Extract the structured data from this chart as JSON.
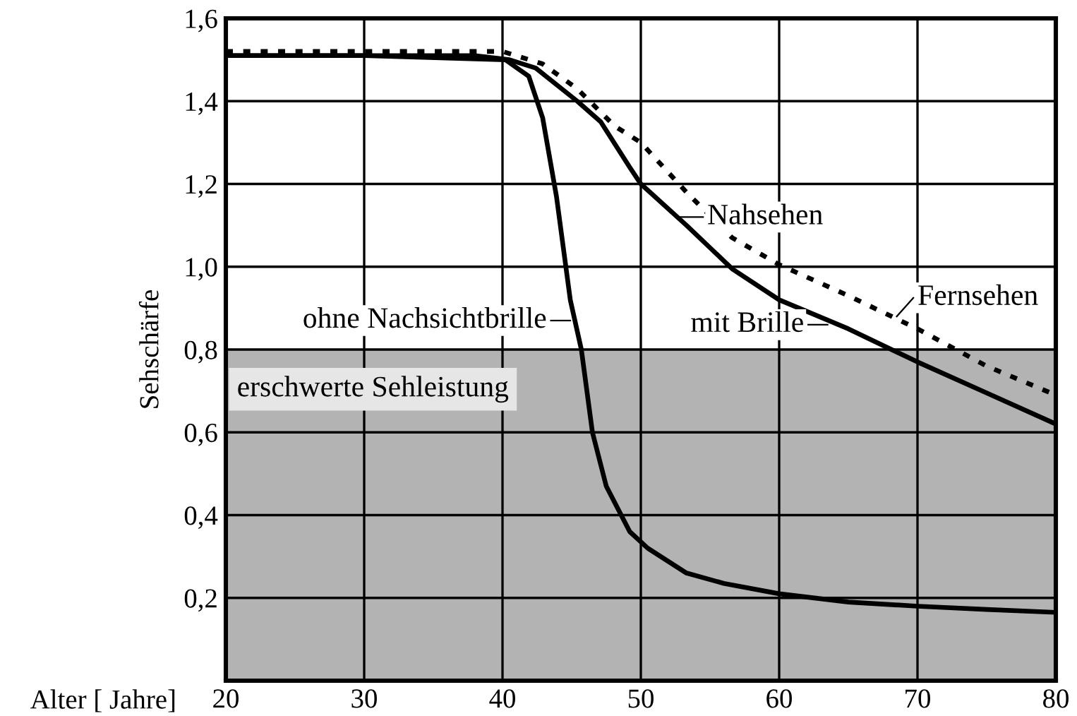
{
  "chart_data": {
    "type": "line",
    "xlabel": "Alter [ Jahre]",
    "ylabel": "Sehschärfe",
    "xlim": [
      20,
      80
    ],
    "ylim": [
      0,
      1.6
    ],
    "xticks": [
      20,
      30,
      40,
      50,
      60,
      70,
      80
    ],
    "yticks": [
      {
        "value": 0.2,
        "label": "0,2"
      },
      {
        "value": 0.4,
        "label": "0,4"
      },
      {
        "value": 0.6,
        "label": "0,6"
      },
      {
        "value": 0.8,
        "label": "0,8"
      },
      {
        "value": 1.0,
        "label": "1,0"
      },
      {
        "value": 1.2,
        "label": "1,2"
      },
      {
        "value": 1.4,
        "label": "1,4"
      },
      {
        "value": 1.6,
        "label": "1,6"
      }
    ],
    "grid": true,
    "legend": false,
    "series": [
      {
        "color": "#000000",
        "line_style": "solid",
        "x": [
          20,
          30,
          40.2,
          41.9,
          42.9,
          43.9,
          44.9,
          45.7,
          46.5,
          47.5,
          49.2,
          50.5,
          53.3,
          56,
          60,
          65,
          70,
          75,
          80
        ],
        "values": [
          1.51,
          1.51,
          1.5,
          1.46,
          1.36,
          1.17,
          0.92,
          0.8,
          0.6,
          0.47,
          0.36,
          0.32,
          0.26,
          0.235,
          0.21,
          0.19,
          0.18,
          0.172,
          0.165
        ]
      },
      {
        "color": "#000000",
        "line_style": "solid",
        "x": [
          20,
          30,
          38,
          40.5,
          42.4,
          45.4,
          47.1,
          49.2,
          50,
          53.3,
          56.6,
          60,
          65,
          70,
          75,
          80
        ],
        "values": [
          1.51,
          1.51,
          1.51,
          1.5,
          1.48,
          1.4,
          1.35,
          1.24,
          1.2,
          1.1,
          0.995,
          0.92,
          0.85,
          0.77,
          0.695,
          0.62
        ]
      },
      {
        "color": "#000000",
        "line_style": "dotted",
        "x": [
          20,
          30,
          40,
          42.9,
          45.4,
          48.1,
          50,
          53.3,
          56.6,
          60,
          65,
          70,
          75,
          80
        ],
        "values": [
          1.52,
          1.52,
          1.52,
          1.49,
          1.43,
          1.34,
          1.3,
          1.18,
          1.07,
          1.005,
          0.93,
          0.85,
          0.76,
          0.69
        ]
      }
    ],
    "bands": [
      {
        "axis": "y",
        "from": 0,
        "to": 0.8,
        "label": "erschwerte Sehleistung",
        "color": "#b3b3b3"
      }
    ],
    "annotations": [
      {
        "text": "ohne Nachsichtbrille",
        "x": 44.9,
        "y": 0.87
      },
      {
        "text": "Nahsehen",
        "x": 52.7,
        "y": 1.12
      },
      {
        "text": "mit Brille",
        "x": 63.5,
        "y": 0.86
      },
      {
        "text": "Fernsehen",
        "x": 68.5,
        "y": 0.88
      }
    ]
  }
}
